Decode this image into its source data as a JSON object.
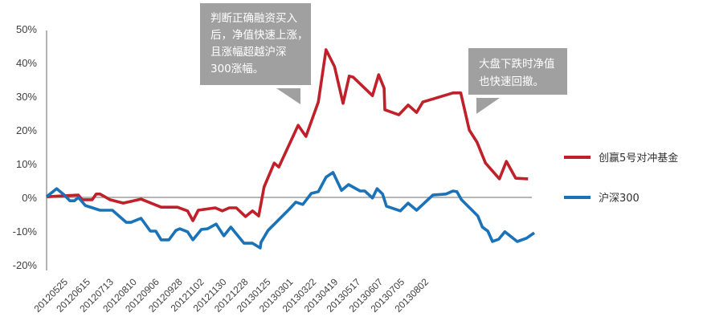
{
  "chart_data": {
    "type": "line",
    "title": "",
    "xlabel": "",
    "ylabel": "",
    "ylim": [
      -20,
      50
    ],
    "y_ticks": [
      "50%",
      "40%",
      "30%",
      "20%",
      "10%",
      "0%",
      "-10%",
      "-20%"
    ],
    "y_tick_values": [
      50,
      40,
      30,
      20,
      10,
      0,
      -10,
      -20
    ],
    "xlim": [
      0,
      63
    ],
    "x_ticks": [
      {
        "label": "20120525",
        "x": 2.8
      },
      {
        "label": "20120615",
        "x": 5.7
      },
      {
        "label": "20120713",
        "x": 8.7
      },
      {
        "label": "20120810",
        "x": 11.7
      },
      {
        "label": "20120906",
        "x": 14.6
      },
      {
        "label": "20120928",
        "x": 17.6
      },
      {
        "label": "20121102",
        "x": 20.4
      },
      {
        "label": "20121130",
        "x": 23.3
      },
      {
        "label": "20121228",
        "x": 26.1
      },
      {
        "label": "20130125",
        "x": 29.0
      },
      {
        "label": "20130301",
        "x": 31.9
      },
      {
        "label": "20130322",
        "x": 34.9
      },
      {
        "label": "20130419",
        "x": 37.7
      },
      {
        "label": "20130517",
        "x": 40.6
      },
      {
        "label": "20130607",
        "x": 43.5
      },
      {
        "label": "20130705",
        "x": 46.3
      },
      {
        "label": "20130802",
        "x": 49.4
      }
    ],
    "grid": false,
    "legend_position": "right",
    "series": [
      {
        "name": "创赢5号对冲基金",
        "color": "#c0202a",
        "points": [
          [
            0,
            0.2
          ],
          [
            4.1,
            0.7
          ],
          [
            4.6,
            -0.7
          ],
          [
            5.9,
            -0.7
          ],
          [
            6.4,
            1.0
          ],
          [
            6.9,
            1.0
          ],
          [
            8.2,
            -0.7
          ],
          [
            9.9,
            -1.7
          ],
          [
            12.2,
            -0.5
          ],
          [
            14.8,
            -2.9
          ],
          [
            16.9,
            -2.9
          ],
          [
            18.2,
            -4.0
          ],
          [
            18.9,
            -6.9
          ],
          [
            19.6,
            -3.8
          ],
          [
            21.8,
            -3.1
          ],
          [
            22.7,
            -4.0
          ],
          [
            23.6,
            -3.1
          ],
          [
            24.5,
            -3.1
          ],
          [
            25.7,
            -5.7
          ],
          [
            26.6,
            -4.0
          ],
          [
            27.4,
            -5.5
          ],
          [
            28.1,
            3.1
          ],
          [
            29.4,
            10.2
          ],
          [
            30.0,
            9.0
          ],
          [
            32.5,
            21.4
          ],
          [
            33.5,
            18.1
          ],
          [
            35.1,
            28.3
          ],
          [
            36.1,
            43.8
          ],
          [
            37.2,
            38.8
          ],
          [
            38.3,
            27.9
          ],
          [
            39.1,
            36.0
          ],
          [
            39.6,
            35.7
          ],
          [
            42.1,
            30.2
          ],
          [
            42.9,
            36.4
          ],
          [
            43.6,
            32.4
          ],
          [
            43.7,
            26.0
          ],
          [
            45.5,
            24.5
          ],
          [
            46.7,
            27.4
          ],
          [
            47.8,
            25.2
          ],
          [
            48.6,
            28.3
          ],
          [
            52.5,
            31.0
          ],
          [
            53.5,
            31.0
          ],
          [
            54.6,
            20.0
          ],
          [
            55.6,
            16.4
          ],
          [
            56.7,
            10.2
          ],
          [
            58.5,
            5.5
          ],
          [
            59.4,
            10.7
          ],
          [
            60.6,
            5.7
          ],
          [
            62.2,
            5.5
          ]
        ]
      },
      {
        "name": "沪深300",
        "color": "#1a72b8",
        "points": [
          [
            0,
            0.2
          ],
          [
            1.3,
            2.6
          ],
          [
            2.3,
            0.7
          ],
          [
            3.0,
            -1.0
          ],
          [
            3.6,
            -1.0
          ],
          [
            4.1,
            0
          ],
          [
            5.0,
            -2.4
          ],
          [
            6.9,
            -3.8
          ],
          [
            8.5,
            -3.8
          ],
          [
            10.3,
            -7.4
          ],
          [
            10.9,
            -7.4
          ],
          [
            12.2,
            -6.2
          ],
          [
            13.4,
            -10.0
          ],
          [
            14.1,
            -10.0
          ],
          [
            14.8,
            -12.6
          ],
          [
            15.8,
            -12.6
          ],
          [
            16.7,
            -9.8
          ],
          [
            17.2,
            -9.3
          ],
          [
            18.2,
            -10.2
          ],
          [
            18.9,
            -12.6
          ],
          [
            20.0,
            -9.5
          ],
          [
            20.8,
            -9.3
          ],
          [
            21.9,
            -7.9
          ],
          [
            22.9,
            -11.4
          ],
          [
            23.8,
            -8.8
          ],
          [
            25.5,
            -13.6
          ],
          [
            26.6,
            -13.6
          ],
          [
            27.6,
            -15.0
          ],
          [
            27.7,
            -13.3
          ],
          [
            28.6,
            -9.8
          ],
          [
            31.3,
            -3.6
          ],
          [
            32.2,
            -1.4
          ],
          [
            33.1,
            -2.1
          ],
          [
            34.2,
            1.2
          ],
          [
            35.1,
            1.7
          ],
          [
            36.1,
            6.0
          ],
          [
            37.0,
            7.4
          ],
          [
            38.1,
            2.1
          ],
          [
            39.0,
            3.8
          ],
          [
            40.5,
            1.9
          ],
          [
            41.1,
            1.9
          ],
          [
            42.1,
            -0.2
          ],
          [
            42.7,
            2.6
          ],
          [
            43.4,
            1.0
          ],
          [
            43.9,
            -2.6
          ],
          [
            45.7,
            -4.0
          ],
          [
            46.7,
            -1.7
          ],
          [
            47.8,
            -3.8
          ],
          [
            49.9,
            0.7
          ],
          [
            51.6,
            1.0
          ],
          [
            52.5,
            1.9
          ],
          [
            53.0,
            1.7
          ],
          [
            53.6,
            -0.7
          ],
          [
            55.7,
            -5.5
          ],
          [
            56.3,
            -8.8
          ],
          [
            57.0,
            -10.0
          ],
          [
            57.6,
            -13.1
          ],
          [
            58.4,
            -12.4
          ],
          [
            59.2,
            -10.2
          ],
          [
            60.8,
            -13.1
          ],
          [
            62.0,
            -12.1
          ],
          [
            63.0,
            -10.5
          ]
        ]
      }
    ],
    "annotations": [
      {
        "lines": [
          "判断正确融资买入",
          "后，净值快速上涨，",
          "且涨幅超越沪深",
          "300涨幅。"
        ],
        "background": "#a0a0a0"
      },
      {
        "lines": [
          "大盘下跌时净值",
          "也快速回撤。"
        ],
        "background": "#a0a0a0"
      }
    ]
  }
}
